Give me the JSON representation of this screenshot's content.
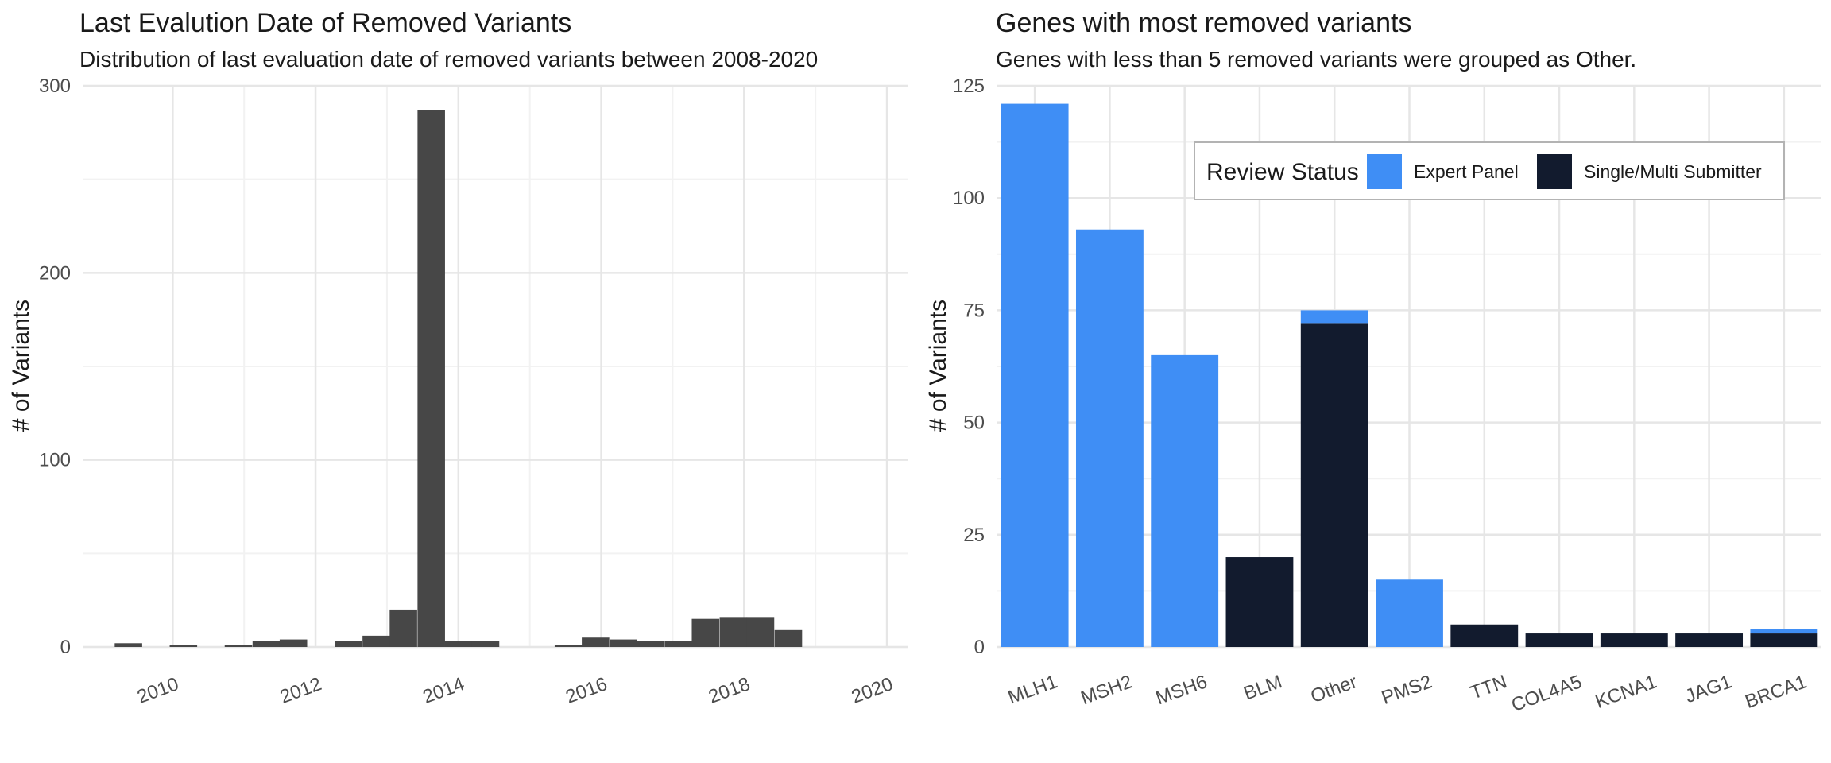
{
  "chart_data": [
    {
      "type": "bar",
      "title": "Last Evalution Date of Removed Variants",
      "subtitle": "Distribution of last evaluation date of removed variants between 2008-2020",
      "xlabel": "",
      "ylabel": "# of Variants",
      "xlim": [
        2008.75,
        2020.3
      ],
      "ylim": [
        0,
        300
      ],
      "x_ticks": [
        "2010",
        "2012",
        "2014",
        "2016",
        "2018",
        "2020"
      ],
      "y_ticks": [
        "0",
        "100",
        "200",
        "300"
      ],
      "bin_width": 0.3846,
      "bar_color": "#474747",
      "grid": true,
      "bins": [
        {
          "x": 2009.38,
          "value": 2
        },
        {
          "x": 2010.15,
          "value": 1
        },
        {
          "x": 2010.92,
          "value": 1
        },
        {
          "x": 2011.31,
          "value": 3
        },
        {
          "x": 2011.69,
          "value": 4
        },
        {
          "x": 2012.46,
          "value": 3
        },
        {
          "x": 2012.85,
          "value": 6
        },
        {
          "x": 2013.23,
          "value": 20
        },
        {
          "x": 2013.62,
          "value": 287
        },
        {
          "x": 2014.0,
          "value": 3
        },
        {
          "x": 2014.38,
          "value": 3
        },
        {
          "x": 2015.54,
          "value": 1
        },
        {
          "x": 2015.92,
          "value": 5
        },
        {
          "x": 2016.31,
          "value": 4
        },
        {
          "x": 2016.69,
          "value": 3
        },
        {
          "x": 2017.08,
          "value": 3
        },
        {
          "x": 2017.46,
          "value": 15
        },
        {
          "x": 2017.85,
          "value": 16
        },
        {
          "x": 2018.23,
          "value": 16
        },
        {
          "x": 2018.62,
          "value": 9
        }
      ]
    },
    {
      "type": "bar",
      "stacked": true,
      "title": "Genes with most removed variants",
      "subtitle": "Genes with less than 5 removed variants were grouped as Other.",
      "xlabel": "",
      "ylabel": "# of Variants",
      "ylim": [
        0,
        125
      ],
      "y_ticks": [
        "0",
        "25",
        "50",
        "75",
        "100",
        "125"
      ],
      "grid": true,
      "legend": {
        "title": "Review Status",
        "placement": "top-right",
        "entries": [
          {
            "name": "Expert Panel",
            "color": "#3f8ef5"
          },
          {
            "name": "Single/Multi Submitter",
            "color": "#121b2e"
          }
        ]
      },
      "categories": [
        "MLH1",
        "MSH2",
        "MSH6",
        "BLM",
        "Other",
        "PMS2",
        "TTN",
        "COL4A5",
        "KCNA1",
        "JAG1",
        "BRCA1"
      ],
      "series": [
        {
          "name": "Single/Multi Submitter",
          "values": [
            0,
            0,
            0,
            20,
            72,
            0,
            5,
            3,
            3,
            3,
            3
          ]
        },
        {
          "name": "Expert Panel",
          "values": [
            121,
            93,
            65,
            0,
            3,
            15,
            0,
            0,
            0,
            0,
            1
          ]
        }
      ]
    }
  ]
}
